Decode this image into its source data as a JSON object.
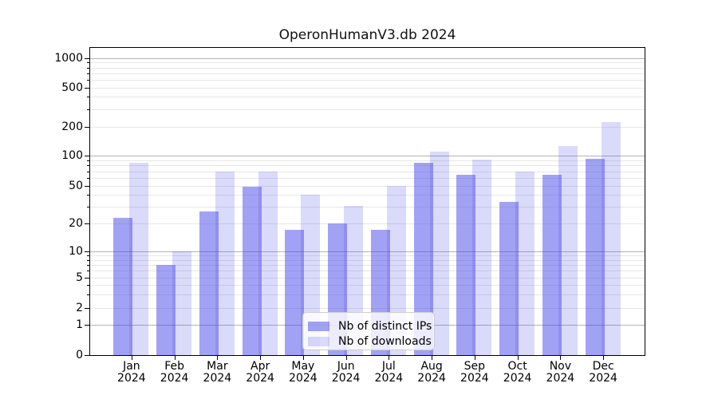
{
  "chart_data": {
    "type": "bar",
    "title": "OperonHumanV3.db 2024",
    "yscale": "symlog",
    "ylim": [
      0,
      1000
    ],
    "grid": "both",
    "legend_position": "lower center",
    "categories": [
      "Jan 2024",
      "Feb 2024",
      "Mar 2024",
      "Apr 2024",
      "May 2024",
      "Jun 2024",
      "Jul 2024",
      "Aug 2024",
      "Sep 2024",
      "Oct 2024",
      "Nov 2024",
      "Dec 2024"
    ],
    "y_tick_labels": [
      1000,
      500,
      200,
      100,
      50,
      20,
      10,
      5,
      2,
      1,
      0
    ],
    "series": [
      {
        "name": "Nb of distinct IPs",
        "key": "ips",
        "color": "rgba(70,70,235,0.5)",
        "values": [
          23,
          7,
          27,
          49,
          17,
          20,
          17,
          85,
          65,
          34,
          64,
          93
        ]
      },
      {
        "name": "Nb of downloads",
        "key": "downloads",
        "color": "rgba(70,70,235,0.2)",
        "values": [
          85,
          10,
          70,
          70,
          40,
          31,
          50,
          110,
          92,
          70,
          125,
          220
        ]
      }
    ],
    "colors": {
      "bar_base": "#4646eb",
      "grid_major": "#b3b3b3",
      "grid_minor": "#e7e7e7",
      "axis": "#000000",
      "legend_border": "#cccccc"
    }
  }
}
